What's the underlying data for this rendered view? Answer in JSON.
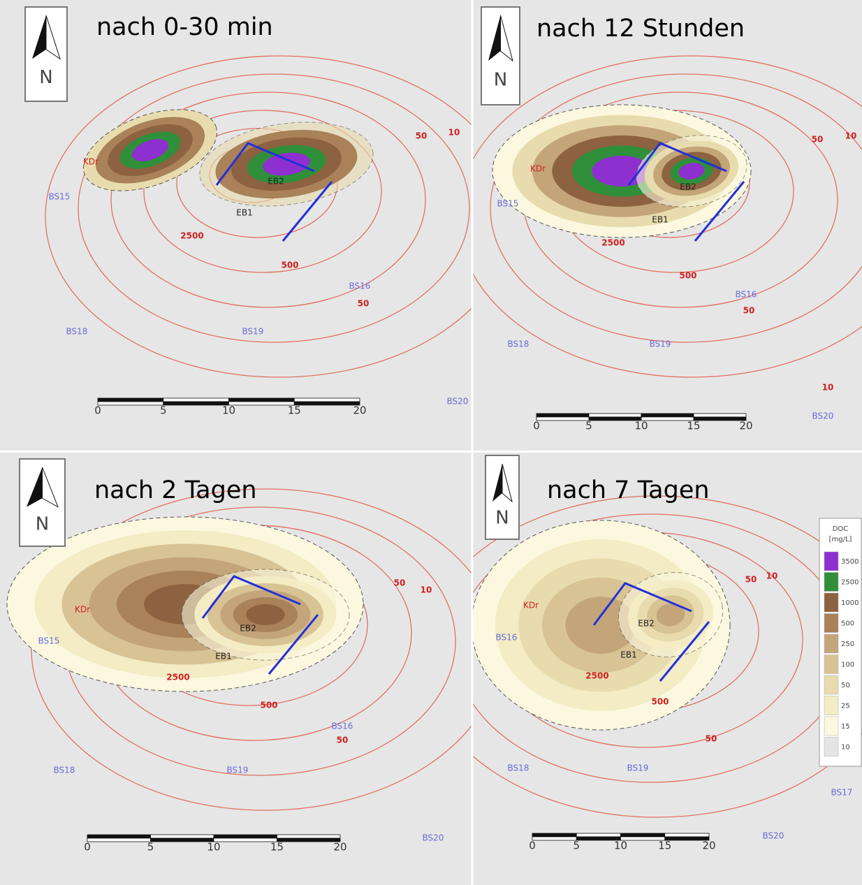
{
  "panels": [
    {
      "title": "nach 0-30 min",
      "north": "N",
      "scale_ticks": [
        "0",
        "5",
        "10",
        "15",
        "20"
      ],
      "labels": [
        "2500",
        "500",
        "50",
        "50",
        "10",
        "BS15",
        "BS16",
        "BS18",
        "BS19",
        "BS20",
        "EB1",
        "EB2",
        "KDr"
      ]
    },
    {
      "title": "nach 12 Stunden",
      "north": "N",
      "scale_ticks": [
        "0",
        "5",
        "10",
        "15",
        "20"
      ],
      "labels": [
        "2500",
        "500",
        "50",
        "50",
        "10",
        "10",
        "BS15",
        "BS16",
        "BS18",
        "BS19",
        "BS20",
        "EB1",
        "EB2",
        "KDr"
      ]
    },
    {
      "title": "nach 2 Tagen",
      "north": "N",
      "scale_ticks": [
        "0",
        "5",
        "10",
        "15",
        "20"
      ],
      "labels": [
        "2500",
        "500",
        "50",
        "50",
        "10",
        "BS15",
        "BS16",
        "BS18",
        "BS19",
        "BS20",
        "EB1",
        "EB2",
        "KDr"
      ]
    },
    {
      "title": "nach 7 Tagen",
      "north": "N",
      "scale_ticks": [
        "0",
        "5",
        "10",
        "15",
        "20"
      ],
      "labels": [
        "2500",
        "500",
        "50",
        "50",
        "10",
        "BS16",
        "BS17",
        "BS18",
        "BS19",
        "BS20",
        "EB1",
        "EB2",
        "KDr"
      ]
    }
  ],
  "legend": {
    "title": "DOC",
    "unit": "[mg/L]",
    "classes": [
      {
        "label": "3500",
        "color": "#8e2fd0"
      },
      {
        "label": "2500",
        "color": "#2f8f3a"
      },
      {
        "label": "1000",
        "color": "#8c6240"
      },
      {
        "label": "500",
        "color": "#a9825a"
      },
      {
        "label": "250",
        "color": "#c4a57a"
      },
      {
        "label": "100",
        "color": "#d8c394"
      },
      {
        "label": "50",
        "color": "#e8dcae"
      },
      {
        "label": "25",
        "color": "#f3ecc4"
      },
      {
        "label": "15",
        "color": "#fbf8df"
      },
      {
        "label": "10",
        "color": "#e4e4e4"
      }
    ]
  }
}
